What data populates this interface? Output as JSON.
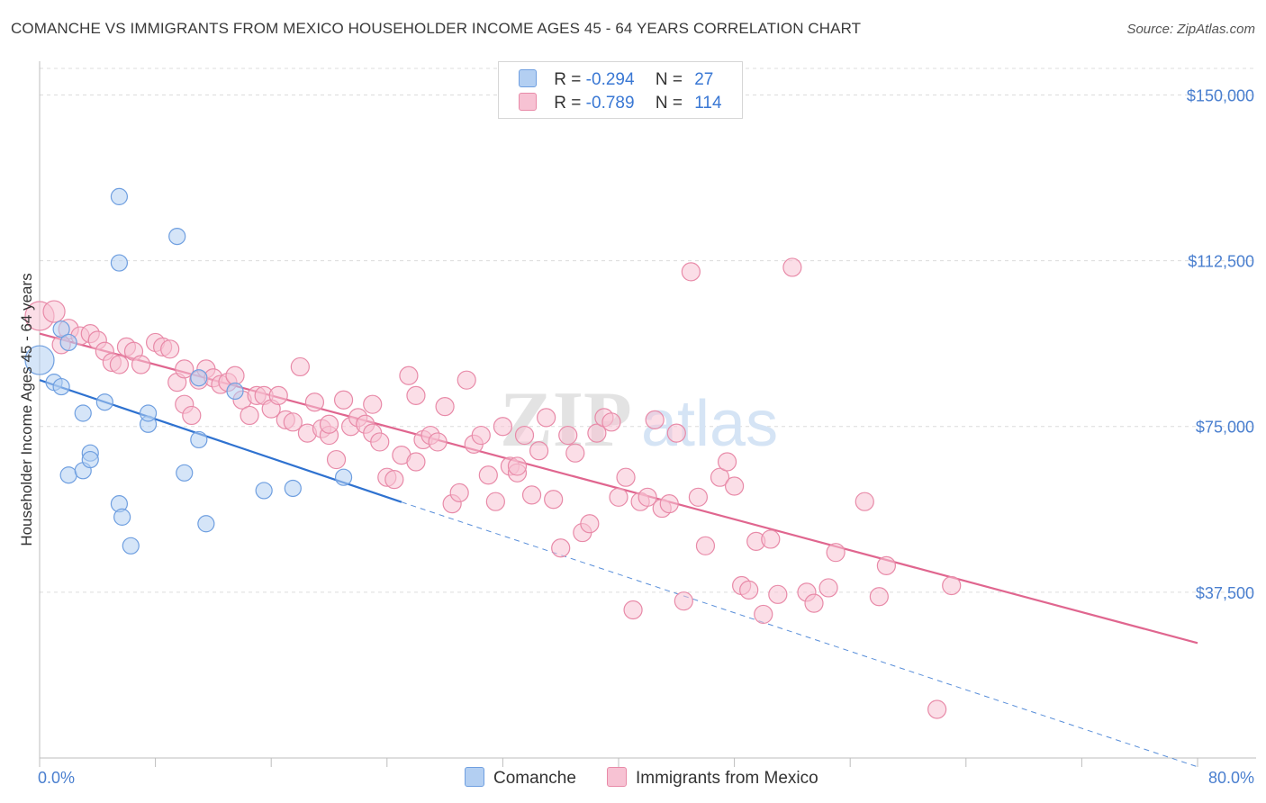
{
  "title": "COMANCHE VS IMMIGRANTS FROM MEXICO HOUSEHOLDER INCOME AGES 45 - 64 YEARS CORRELATION CHART",
  "source": "Source: ZipAtlas.com",
  "watermark": {
    "zip": "ZIP",
    "atlas": "atlas"
  },
  "legend": {
    "rows": [
      {
        "r_label": "R =",
        "r_value": "-0.294",
        "n_label": "N =",
        "n_value": "27",
        "color": "#b3cff2",
        "border": "#6f9fe0"
      },
      {
        "r_label": "R =",
        "r_value": "-0.789",
        "n_label": "N =",
        "n_value": "114",
        "color": "#f7c2d3",
        "border": "#e88aa8"
      }
    ]
  },
  "bottom_legend": {
    "items": [
      {
        "label": "Comanche",
        "color": "#b3cff2",
        "border": "#6f9fe0"
      },
      {
        "label": "Immigrants from Mexico",
        "color": "#f7c2d3",
        "border": "#e88aa8"
      }
    ]
  },
  "chart_data": {
    "type": "scatter",
    "title": "COMANCHE VS IMMIGRANTS FROM MEXICO HOUSEHOLDER INCOME AGES 45 - 64 YEARS CORRELATION CHART",
    "xlabel": "",
    "ylabel": "Householder Income Ages 45 - 64 years",
    "xlim": [
      0,
      80
    ],
    "ylim": [
      0,
      156000
    ],
    "x_tick_labels": [
      "0.0%",
      "80.0%"
    ],
    "y_ticks": [
      37500,
      75000,
      112500,
      150000
    ],
    "y_tick_labels": [
      "$37,500",
      "$75,000",
      "$112,500",
      "$150,000"
    ],
    "series": [
      {
        "name": "Comanche",
        "color": "#6f9fe0",
        "fill": "#b3cff2",
        "line_color": "#2f72d0",
        "trend": {
          "x0": 0,
          "y0": 85500,
          "x1": 25,
          "y1": 57900,
          "dash_to_x": 80,
          "dash_to_y": -2000
        },
        "points": [
          [
            0,
            90000,
            16
          ],
          [
            1,
            85000,
            9
          ],
          [
            1.5,
            84000,
            9
          ],
          [
            1.5,
            97000,
            9
          ],
          [
            2,
            94000,
            9
          ],
          [
            3,
            78000,
            9
          ],
          [
            4.5,
            80500,
            9
          ],
          [
            2,
            64000,
            9
          ],
          [
            3,
            65000,
            9
          ],
          [
            3.5,
            69000,
            9
          ],
          [
            3.5,
            67500,
            9
          ],
          [
            5.5,
            127000,
            9
          ],
          [
            5.5,
            112000,
            9
          ],
          [
            9.5,
            118000,
            9
          ],
          [
            7.5,
            75500,
            9
          ],
          [
            7.5,
            78000,
            9
          ],
          [
            5.5,
            57500,
            9
          ],
          [
            5.7,
            54500,
            9
          ],
          [
            6.3,
            48000,
            9
          ],
          [
            10,
            64500,
            9
          ],
          [
            11,
            72000,
            9
          ],
          [
            11.5,
            53000,
            9
          ],
          [
            13.5,
            83000,
            9
          ],
          [
            11,
            86000,
            9
          ],
          [
            15.5,
            60500,
            9
          ],
          [
            17.5,
            61000,
            9
          ],
          [
            21,
            63500,
            9
          ]
        ]
      },
      {
        "name": "Immigrants from Mexico",
        "color": "#e88aa8",
        "fill": "#f7c2d3",
        "line_color": "#e0668f",
        "trend": {
          "x0": 0,
          "y0": 96000,
          "x1": 80,
          "y1": 26000
        },
        "points": [
          [
            0,
            100000,
            16
          ],
          [
            1,
            101000,
            12
          ],
          [
            2,
            97000,
            11
          ],
          [
            2.8,
            95500,
            10
          ],
          [
            3.5,
            96000,
            10
          ],
          [
            1.5,
            93500,
            10
          ],
          [
            4,
            94500,
            10
          ],
          [
            4.5,
            92000,
            10
          ],
          [
            5,
            89500,
            10
          ],
          [
            5.5,
            89000,
            10
          ],
          [
            6,
            93000,
            10
          ],
          [
            6.5,
            92000,
            10
          ],
          [
            7,
            89000,
            10
          ],
          [
            8,
            94000,
            10
          ],
          [
            8.5,
            93000,
            10
          ],
          [
            9,
            92500,
            10
          ],
          [
            9.5,
            85000,
            10
          ],
          [
            10,
            88000,
            10
          ],
          [
            10,
            80000,
            10
          ],
          [
            10.5,
            77500,
            10
          ],
          [
            11,
            85500,
            10
          ],
          [
            11.5,
            88000,
            10
          ],
          [
            12,
            86000,
            10
          ],
          [
            12.5,
            84500,
            10
          ],
          [
            13,
            85000,
            10
          ],
          [
            13.5,
            86500,
            10
          ],
          [
            14,
            81000,
            10
          ],
          [
            14.5,
            77500,
            10
          ],
          [
            15,
            82000,
            10
          ],
          [
            15.5,
            82000,
            10
          ],
          [
            16,
            79000,
            10
          ],
          [
            16.5,
            82000,
            10
          ],
          [
            17,
            76500,
            10
          ],
          [
            17.5,
            76000,
            10
          ],
          [
            18,
            88500,
            10
          ],
          [
            18.5,
            73500,
            10
          ],
          [
            19,
            80500,
            10
          ],
          [
            19.5,
            74500,
            10
          ],
          [
            20,
            73000,
            10
          ],
          [
            20.5,
            67500,
            10
          ],
          [
            21,
            81000,
            10
          ],
          [
            21.5,
            75000,
            10
          ],
          [
            22,
            77000,
            10
          ],
          [
            22.5,
            75500,
            10
          ],
          [
            23,
            73500,
            10
          ],
          [
            23.5,
            71500,
            10
          ],
          [
            24,
            63500,
            10
          ],
          [
            24.5,
            63000,
            10
          ],
          [
            25,
            68500,
            10
          ],
          [
            25.5,
            86500,
            10
          ],
          [
            26,
            82000,
            10
          ],
          [
            26.5,
            72000,
            10
          ],
          [
            27,
            73000,
            10
          ],
          [
            27.5,
            71500,
            10
          ],
          [
            28,
            79500,
            10
          ],
          [
            28.5,
            57500,
            10
          ],
          [
            29,
            60000,
            10
          ],
          [
            29.5,
            85500,
            10
          ],
          [
            30,
            71000,
            10
          ],
          [
            30.5,
            73000,
            10
          ],
          [
            31,
            64000,
            10
          ],
          [
            31.5,
            58000,
            10
          ],
          [
            32,
            75000,
            10
          ],
          [
            32.5,
            66000,
            10
          ],
          [
            33,
            64500,
            10
          ],
          [
            33.5,
            73000,
            10
          ],
          [
            34,
            59500,
            10
          ],
          [
            34.5,
            69500,
            10
          ],
          [
            35,
            77000,
            10
          ],
          [
            35.5,
            58500,
            10
          ],
          [
            36,
            47500,
            10
          ],
          [
            36.5,
            73000,
            10
          ],
          [
            37,
            69000,
            10
          ],
          [
            37.5,
            51000,
            10
          ],
          [
            38,
            53000,
            10
          ],
          [
            38.5,
            73500,
            10
          ],
          [
            39,
            77000,
            10
          ],
          [
            39.5,
            76000,
            10
          ],
          [
            40,
            59000,
            10
          ],
          [
            40.5,
            63500,
            10
          ],
          [
            41,
            33500,
            10
          ],
          [
            41.5,
            58000,
            10
          ],
          [
            42,
            59000,
            10
          ],
          [
            42.5,
            76500,
            10
          ],
          [
            43,
            56500,
            10
          ],
          [
            43.5,
            57500,
            10
          ],
          [
            44,
            73500,
            10
          ],
          [
            44.5,
            35500,
            10
          ],
          [
            45,
            110000,
            10
          ],
          [
            45.5,
            59000,
            10
          ],
          [
            46,
            48000,
            10
          ],
          [
            47,
            63500,
            10
          ],
          [
            47.5,
            67000,
            10
          ],
          [
            48,
            61500,
            10
          ],
          [
            48.5,
            39000,
            10
          ],
          [
            49,
            38000,
            10
          ],
          [
            49.5,
            49000,
            10
          ],
          [
            50,
            32500,
            10
          ],
          [
            50.5,
            49500,
            10
          ],
          [
            51,
            37000,
            10
          ],
          [
            52,
            111000,
            10
          ],
          [
            53,
            37500,
            10
          ],
          [
            53.5,
            35000,
            10
          ],
          [
            54.5,
            38500,
            10
          ],
          [
            55,
            46500,
            10
          ],
          [
            57,
            58000,
            10
          ],
          [
            58,
            36500,
            10
          ],
          [
            58.5,
            43500,
            10
          ],
          [
            63,
            39000,
            10
          ],
          [
            62,
            11000,
            10
          ],
          [
            33,
            66000,
            10
          ],
          [
            26,
            67000,
            10
          ],
          [
            23,
            80000,
            10
          ],
          [
            20,
            75500,
            10
          ]
        ]
      }
    ]
  }
}
